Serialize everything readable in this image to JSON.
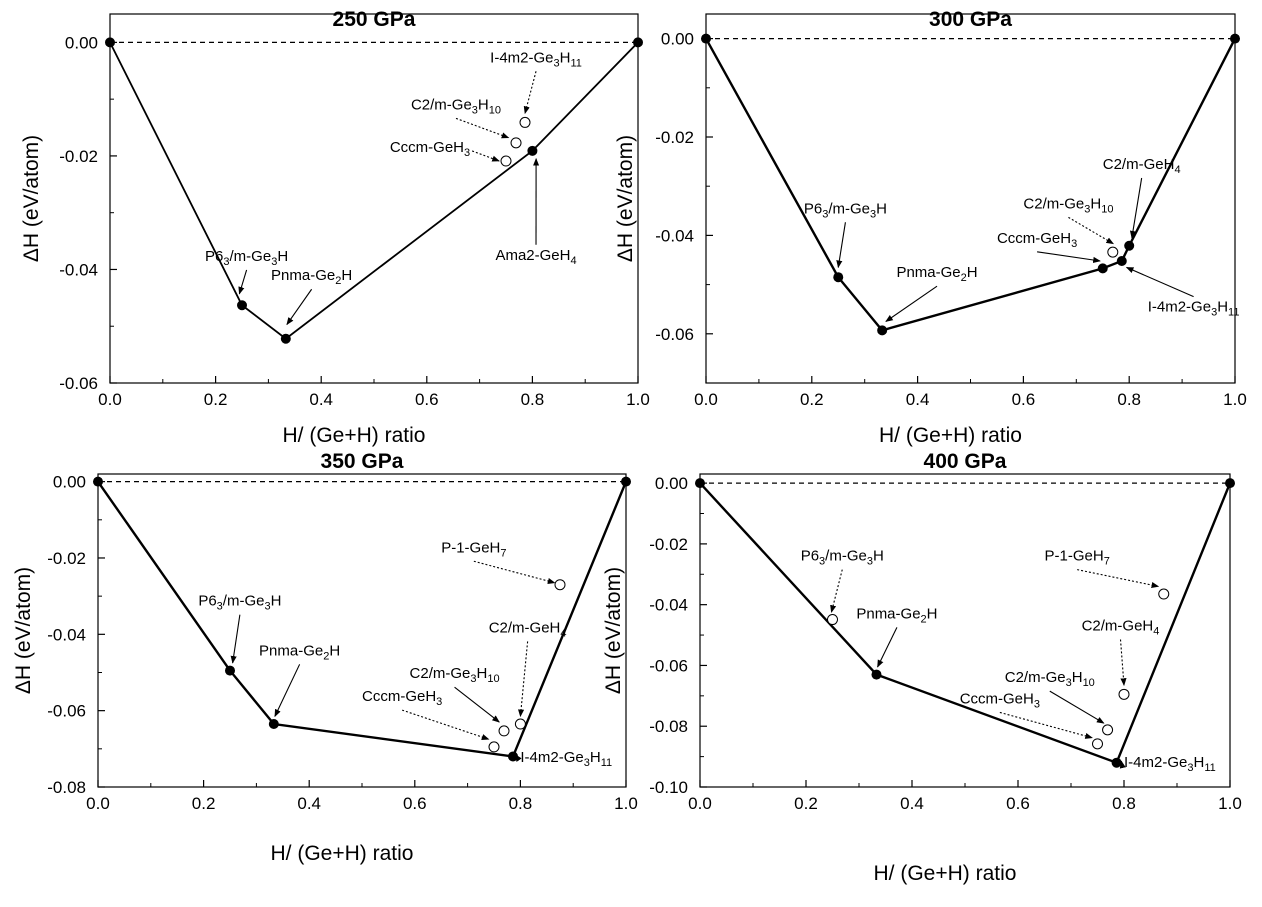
{
  "chart_data": [
    {
      "type": "scatter",
      "title": "250 GPa",
      "xlabel": "H/ (Ge+H) ratio",
      "ylabel": "ΔH  (eV/atom)",
      "xlim": [
        0.0,
        1.0
      ],
      "ylim": [
        -0.06,
        0.005
      ],
      "xticks": [
        "0.0",
        "0.2",
        "0.4",
        "0.6",
        "0.8",
        "1.0"
      ],
      "yticks": [
        "0.00",
        "-0.02",
        "-0.04",
        "-0.06"
      ],
      "hull": [
        {
          "x": 0.0,
          "y": 0.0
        },
        {
          "x": 0.25,
          "y": -0.0463
        },
        {
          "x": 0.333,
          "y": -0.0522
        },
        {
          "x": 0.8,
          "y": -0.0191
        },
        {
          "x": 1.0,
          "y": 0.0
        }
      ],
      "unstable": [
        {
          "x": 0.75,
          "y": -0.0209
        },
        {
          "x": 0.769,
          "y": -0.0177
        },
        {
          "x": 0.786,
          "y": -0.0141
        }
      ],
      "annotations": [
        {
          "parts": [
            [
              "P6",
              ""
            ],
            [
              "3",
              "sub"
            ],
            [
              "/m-Ge",
              ""
            ],
            [
              "3",
              "sub"
            ],
            [
              "H",
              ""
            ]
          ],
          "x": 0.18,
          "y": -0.0385,
          "ax": 0.245,
          "ay": -0.0443,
          "style": "solid"
        },
        {
          "parts": [
            [
              "Pnma-Ge",
              ""
            ],
            [
              "2",
              "sub"
            ],
            [
              "H",
              ""
            ]
          ],
          "x": 0.305,
          "y": -0.0419,
          "ax": 0.335,
          "ay": -0.0497,
          "style": "solid"
        },
        {
          "parts": [
            [
              "C2/m-Ge",
              ""
            ],
            [
              "3",
              "sub"
            ],
            [
              "H",
              ""
            ],
            [
              "10",
              "sub"
            ]
          ],
          "x": 0.57,
          "y": -0.0118,
          "ax": 0.755,
          "ay": -0.0168,
          "style": "dashed"
        },
        {
          "parts": [
            [
              "Cccm-GeH",
              ""
            ],
            [
              "3",
              "sub"
            ]
          ],
          "x": 0.53,
          "y": -0.0193,
          "ax": 0.737,
          "ay": -0.0209,
          "style": "dashed"
        },
        {
          "parts": [
            [
              "I-4m2-Ge",
              ""
            ],
            [
              "3",
              "sub"
            ],
            [
              "H",
              ""
            ],
            [
              "11",
              "sub"
            ]
          ],
          "x": 0.72,
          "y": -0.0035,
          "ax": 0.786,
          "ay": -0.0125,
          "style": "dashed"
        },
        {
          "parts": [
            [
              "Ama2-GeH",
              ""
            ],
            [
              "4",
              "sub"
            ]
          ],
          "x": 0.73,
          "y": -0.0383,
          "ax": 0.807,
          "ay": -0.0205,
          "style": "solid"
        }
      ]
    },
    {
      "type": "scatter",
      "title": "300 GPa",
      "xlabel": "H/ (Ge+H) ratio",
      "ylabel": "ΔH  (eV/atom)",
      "xlim": [
        0.0,
        1.0
      ],
      "ylim": [
        -0.07,
        0.005
      ],
      "xticks": [
        "0.0",
        "0.2",
        "0.4",
        "0.6",
        "0.8",
        "1.0"
      ],
      "yticks": [
        "0.00",
        "-0.02",
        "-0.04",
        "-0.06"
      ],
      "hull": [
        {
          "x": 0.0,
          "y": 0.0
        },
        {
          "x": 0.25,
          "y": -0.0485
        },
        {
          "x": 0.333,
          "y": -0.0593
        },
        {
          "x": 0.75,
          "y": -0.0467
        },
        {
          "x": 0.786,
          "y": -0.0452
        },
        {
          "x": 0.8,
          "y": -0.0421
        },
        {
          "x": 1.0,
          "y": 0.0
        }
      ],
      "unstable": [
        {
          "x": 0.769,
          "y": -0.0434
        }
      ],
      "annotations": [
        {
          "parts": [
            [
              "P6",
              ""
            ],
            [
              "3",
              "sub"
            ],
            [
              "/m-Ge",
              ""
            ],
            [
              "3",
              "sub"
            ],
            [
              "H",
              ""
            ]
          ],
          "x": 0.185,
          "y": -0.0355,
          "ax": 0.25,
          "ay": -0.0465,
          "style": "solid"
        },
        {
          "parts": [
            [
              "Pnma-Ge",
              ""
            ],
            [
              "2",
              "sub"
            ],
            [
              "H",
              ""
            ]
          ],
          "x": 0.36,
          "y": -0.0485,
          "ax": 0.34,
          "ay": -0.0575,
          "style": "solid"
        },
        {
          "parts": [
            [
              "C2/m-GeH",
              ""
            ],
            [
              "4",
              "sub"
            ]
          ],
          "x": 0.75,
          "y": -0.0265,
          "ax": 0.805,
          "ay": -0.0405,
          "style": "solid"
        },
        {
          "parts": [
            [
              "C2/m-Ge",
              ""
            ],
            [
              "3",
              "sub"
            ],
            [
              "H",
              ""
            ],
            [
              "10",
              "sub"
            ]
          ],
          "x": 0.6,
          "y": -0.0345,
          "ax": 0.77,
          "ay": -0.0417,
          "style": "dashed"
        },
        {
          "parts": [
            [
              "Cccm-GeH",
              ""
            ],
            [
              "3",
              "sub"
            ]
          ],
          "x": 0.55,
          "y": -0.0415,
          "ax": 0.745,
          "ay": -0.0452,
          "style": "solid"
        },
        {
          "parts": [
            [
              "I-4m2-Ge",
              ""
            ],
            [
              "3",
              "sub"
            ],
            [
              "H",
              ""
            ],
            [
              "11",
              "sub"
            ]
          ],
          "x": 0.835,
          "y": -0.0555,
          "ax": 0.795,
          "ay": -0.0465,
          "style": "solid"
        }
      ]
    },
    {
      "type": "scatter",
      "title": "350 GPa",
      "xlabel": "H/ (Ge+H) ratio",
      "ylabel": "ΔH  (eV/atom)",
      "xlim": [
        0.0,
        1.0
      ],
      "ylim": [
        -0.08,
        0.002
      ],
      "xticks": [
        "0.0",
        "0.2",
        "0.4",
        "0.6",
        "0.8",
        "1.0"
      ],
      "yticks": [
        "0.00",
        "-0.02",
        "-0.04",
        "-0.06",
        "-0.08"
      ],
      "hull": [
        {
          "x": 0.0,
          "y": 0.0
        },
        {
          "x": 0.25,
          "y": -0.0495
        },
        {
          "x": 0.333,
          "y": -0.0635
        },
        {
          "x": 0.786,
          "y": -0.072
        },
        {
          "x": 1.0,
          "y": 0.0
        }
      ],
      "unstable": [
        {
          "x": 0.75,
          "y": -0.0695
        },
        {
          "x": 0.769,
          "y": -0.0653
        },
        {
          "x": 0.8,
          "y": -0.0635
        },
        {
          "x": 0.875,
          "y": -0.027
        }
      ],
      "annotations": [
        {
          "parts": [
            [
              "P-1-GeH",
              ""
            ],
            [
              "7",
              "sub"
            ]
          ],
          "x": 0.65,
          "y": -0.0185,
          "ax": 0.865,
          "ay": -0.0265,
          "style": "dashed"
        },
        {
          "parts": [
            [
              "P6",
              ""
            ],
            [
              "3",
              "sub"
            ],
            [
              "/m-Ge",
              ""
            ],
            [
              "3",
              "sub"
            ],
            [
              "H",
              ""
            ]
          ],
          "x": 0.19,
          "y": -0.0325,
          "ax": 0.255,
          "ay": -0.0475,
          "style": "solid"
        },
        {
          "parts": [
            [
              "Pnma-Ge",
              ""
            ],
            [
              "2",
              "sub"
            ],
            [
              "H",
              ""
            ]
          ],
          "x": 0.305,
          "y": -0.0455,
          "ax": 0.335,
          "ay": -0.0615,
          "style": "solid"
        },
        {
          "parts": [
            [
              "C2/m-GeH",
              ""
            ],
            [
              "4",
              "sub"
            ]
          ],
          "x": 0.74,
          "y": -0.0395,
          "ax": 0.8,
          "ay": -0.0615,
          "style": "dashed"
        },
        {
          "parts": [
            [
              "C2/m-Ge",
              ""
            ],
            [
              "3",
              "sub"
            ],
            [
              "H",
              ""
            ],
            [
              "10",
              "sub"
            ]
          ],
          "x": 0.59,
          "y": -0.0515,
          "ax": 0.76,
          "ay": -0.063,
          "style": "solid"
        },
        {
          "parts": [
            [
              "Cccm-GeH",
              ""
            ],
            [
              "3",
              "sub"
            ]
          ],
          "x": 0.5,
          "y": -0.0575,
          "ax": 0.74,
          "ay": -0.0675,
          "style": "dashed"
        },
        {
          "parts": [
            [
              "I-4m2-Ge",
              ""
            ],
            [
              "3",
              "sub"
            ],
            [
              "H",
              ""
            ],
            [
              "11",
              "sub"
            ]
          ],
          "x": 0.8,
          "y": -0.0735,
          "ax": 0.79,
          "ay": -0.0715,
          "style": "solid"
        }
      ]
    },
    {
      "type": "scatter",
      "title": "400 GPa",
      "xlabel": "H/ (Ge+H) ratio",
      "ylabel": "ΔH  (eV/atom)",
      "xlim": [
        0.0,
        1.0
      ],
      "ylim": [
        -0.1,
        0.003
      ],
      "xticks": [
        "0.0",
        "0.2",
        "0.4",
        "0.6",
        "0.8",
        "1.0"
      ],
      "yticks": [
        "0.00",
        "-0.02",
        "-0.04",
        "-0.06",
        "-0.08",
        "-0.10"
      ],
      "hull": [
        {
          "x": 0.0,
          "y": 0.0
        },
        {
          "x": 0.333,
          "y": -0.063
        },
        {
          "x": 0.786,
          "y": -0.092
        },
        {
          "x": 1.0,
          "y": 0.0
        }
      ],
      "unstable": [
        {
          "x": 0.25,
          "y": -0.0449
        },
        {
          "x": 0.75,
          "y": -0.0858
        },
        {
          "x": 0.769,
          "y": -0.0812
        },
        {
          "x": 0.8,
          "y": -0.0695
        },
        {
          "x": 0.875,
          "y": -0.0365
        }
      ],
      "annotations": [
        {
          "parts": [
            [
              "P6",
              ""
            ],
            [
              "3",
              "sub"
            ],
            [
              "/m-Ge",
              ""
            ],
            [
              "3",
              "sub"
            ],
            [
              "H",
              ""
            ]
          ],
          "x": 0.19,
          "y": -0.0255,
          "ax": 0.248,
          "ay": -0.0425,
          "style": "dashed"
        },
        {
          "parts": [
            [
              "Pnma-Ge",
              ""
            ],
            [
              "2",
              "sub"
            ],
            [
              "H",
              ""
            ]
          ],
          "x": 0.295,
          "y": -0.0445,
          "ax": 0.335,
          "ay": -0.0605,
          "style": "solid"
        },
        {
          "parts": [
            [
              "P-1-GeH",
              ""
            ],
            [
              "7",
              "sub"
            ]
          ],
          "x": 0.65,
          "y": -0.0255,
          "ax": 0.865,
          "ay": -0.034,
          "style": "dashed"
        },
        {
          "parts": [
            [
              "C2/m-GeH",
              ""
            ],
            [
              "4",
              "sub"
            ]
          ],
          "x": 0.72,
          "y": -0.0485,
          "ax": 0.8,
          "ay": -0.0665,
          "style": "dashed"
        },
        {
          "parts": [
            [
              "C2/m-Ge",
              ""
            ],
            [
              "3",
              "sub"
            ],
            [
              "H",
              ""
            ],
            [
              "10",
              "sub"
            ]
          ],
          "x": 0.575,
          "y": -0.0655,
          "ax": 0.762,
          "ay": -0.079,
          "style": "solid"
        },
        {
          "parts": [
            [
              "Cccm-GeH",
              ""
            ],
            [
              "3",
              "sub"
            ]
          ],
          "x": 0.49,
          "y": -0.0725,
          "ax": 0.74,
          "ay": -0.0838,
          "style": "dashed"
        },
        {
          "parts": [
            [
              "I-4m2-Ge",
              ""
            ],
            [
              "3",
              "sub"
            ],
            [
              "H",
              ""
            ],
            [
              "11",
              "sub"
            ]
          ],
          "x": 0.8,
          "y": -0.0935,
          "ax": 0.795,
          "ay": -0.0915,
          "style": "solid"
        }
      ]
    }
  ]
}
